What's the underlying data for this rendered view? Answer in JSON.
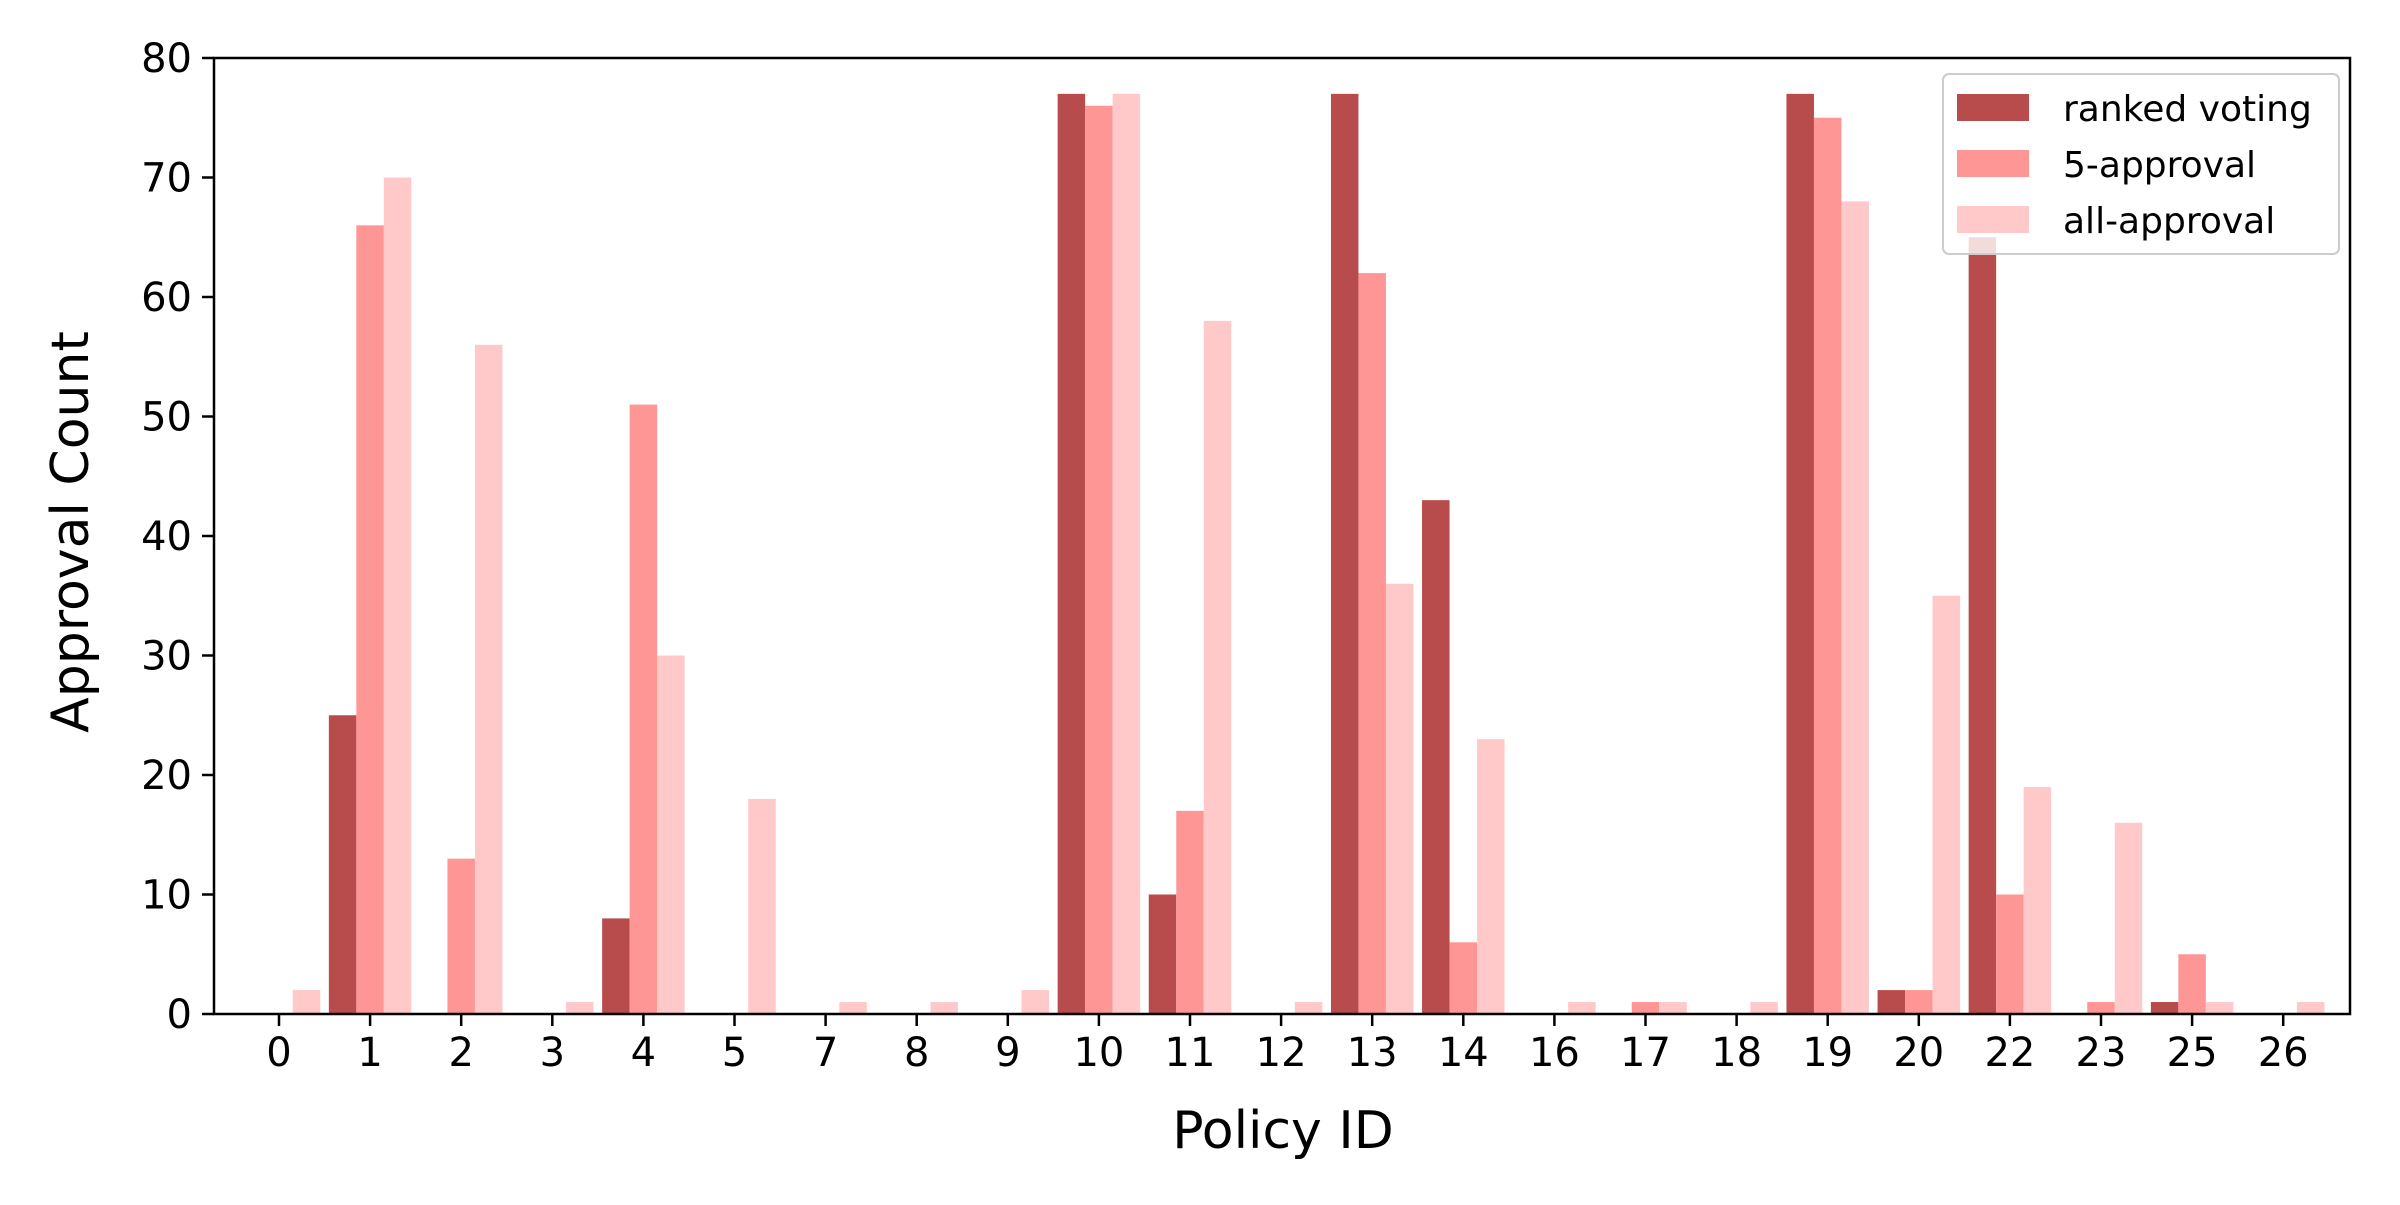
{
  "chart_data": {
    "type": "bar",
    "title": "",
    "xlabel": "Policy ID",
    "ylabel": "Approval Count",
    "ylim": [
      0,
      80
    ],
    "yticks": [
      0,
      10,
      20,
      30,
      40,
      50,
      60,
      70,
      80
    ],
    "categories": [
      "0",
      "1",
      "2",
      "3",
      "4",
      "5",
      "7",
      "8",
      "9",
      "10",
      "11",
      "12",
      "13",
      "14",
      "16",
      "17",
      "18",
      "19",
      "20",
      "22",
      "23",
      "25",
      "26"
    ],
    "series": [
      {
        "name": "ranked voting",
        "color": "#b84b4b",
        "values": [
          0,
          25,
          0,
          0,
          8,
          0,
          0,
          0,
          0,
          77,
          10,
          0,
          77,
          43,
          0,
          0,
          0,
          77,
          2,
          65,
          0,
          1,
          0
        ]
      },
      {
        "name": "5-approval",
        "color": "#ff9696",
        "values": [
          0,
          66,
          13,
          0,
          51,
          0,
          0,
          0,
          0,
          76,
          17,
          0,
          62,
          6,
          0,
          1,
          0,
          75,
          2,
          10,
          1,
          5,
          0
        ]
      },
      {
        "name": "all-approval",
        "color": "#ffc9c9",
        "values": [
          2,
          70,
          56,
          1,
          30,
          18,
          1,
          1,
          2,
          77,
          58,
          1,
          36,
          23,
          1,
          1,
          1,
          68,
          35,
          19,
          16,
          1,
          1
        ]
      }
    ],
    "grid": false,
    "legend_position": "top-right"
  }
}
